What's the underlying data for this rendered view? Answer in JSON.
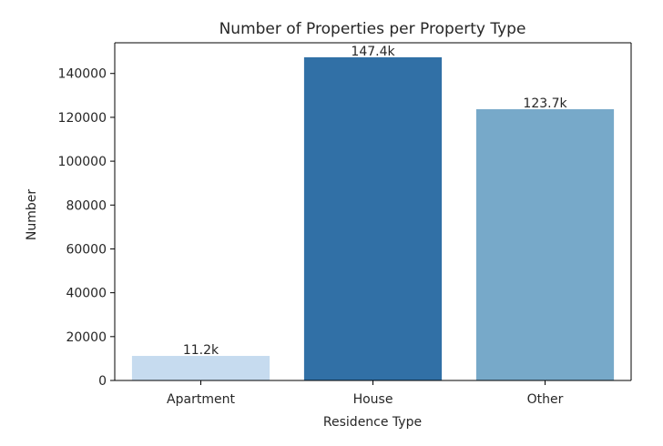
{
  "chart_data": {
    "type": "bar",
    "title": "Number of Properties per Property Type",
    "xlabel": "Residence Type",
    "ylabel": "Number",
    "categories": [
      "Apartment",
      "House",
      "Other"
    ],
    "values": [
      11200,
      147400,
      123700
    ],
    "data_labels": [
      "11.2k",
      "147.4k",
      "123.7k"
    ],
    "colors": [
      "#c6dbef",
      "#3170a6",
      "#77a9c9"
    ],
    "ylim": [
      0,
      154000
    ],
    "yticks": [
      0,
      20000,
      40000,
      60000,
      80000,
      100000,
      120000,
      140000
    ],
    "ytick_labels": [
      "0",
      "20000",
      "40000",
      "60000",
      "80000",
      "100000",
      "120000",
      "140000"
    ],
    "grid": false,
    "legend": "none"
  }
}
